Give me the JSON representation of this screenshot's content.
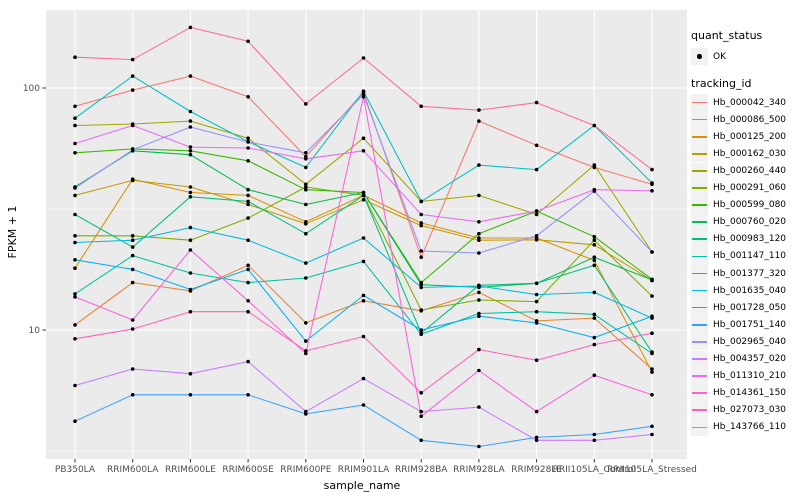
{
  "legend": {
    "quant_status_title": "quant_status",
    "quant_status_items": [
      {
        "label": "OK",
        "marker": "point-black"
      }
    ],
    "tracking_id_title": "tracking_id"
  },
  "chart_data": {
    "type": "line",
    "title": "",
    "xlabel": "sample_name",
    "ylabel": "FPKM + 1",
    "x_type": "categorical",
    "y_scale": "log10",
    "ylim": [
      2.9,
      211
    ],
    "y_ticks": [
      10,
      100
    ],
    "y_tick_labels": [
      "10",
      "100"
    ],
    "y_minor_ticks": [
      3.162,
      31.62
    ],
    "grid": true,
    "legend_position": "right",
    "panel_bg": "#EBEBEB",
    "grid_color": "#FFFFFF",
    "axis_text_color": "#4D4D4D",
    "tick_color": "#333333",
    "point_color": "#000000",
    "categories": [
      "PB350LA",
      "RRIM600LA",
      "RRIM600LE",
      "RRIM600SE",
      "RRIM600PE",
      "RRIM901LA",
      "RRIM928BA",
      "RRIM928LA",
      "RRIM928LE",
      "RRII105LA_Control",
      "RRII105LA_Stressed"
    ],
    "series": [
      {
        "name": "Hb_000042_340",
        "color": "#F8766D",
        "values": [
          84,
          98,
          112,
          92,
          52,
          96,
          20,
          73,
          58,
          47,
          40
        ]
      },
      {
        "name": "Hb_000086_500",
        "color": "#EA8331",
        "values": [
          10.5,
          15.7,
          14.5,
          18.5,
          10.7,
          13.2,
          12.0,
          14.3,
          10.9,
          11.2,
          6.9
        ]
      },
      {
        "name": "Hb_000125_200",
        "color": "#D89000",
        "values": [
          18,
          42,
          37,
          36,
          28,
          36,
          27.7,
          24,
          24,
          19.4,
          6.7
        ]
      },
      {
        "name": "Hb_000162_030",
        "color": "#C09B00",
        "values": [
          36,
          41.5,
          39,
          33,
          27.5,
          34.5,
          27,
          23.5,
          23.6,
          22.5,
          16
        ]
      },
      {
        "name": "Hb_000260_440",
        "color": "#A3A500",
        "values": [
          70,
          71,
          73,
          62,
          40,
          62,
          34,
          36,
          30,
          48,
          21
        ]
      },
      {
        "name": "Hb_000291_060",
        "color": "#7CAE00",
        "values": [
          24.5,
          24.5,
          23.5,
          29,
          39,
          36,
          12.1,
          13.3,
          13.1,
          23.5,
          13.8
        ]
      },
      {
        "name": "Hb_000599_080",
        "color": "#39B600",
        "values": [
          54,
          56,
          55,
          50,
          38,
          37,
          15.7,
          25,
          31,
          24.3,
          16.2
        ]
      },
      {
        "name": "Hb_000760_020",
        "color": "#00BB4E",
        "values": [
          39,
          55,
          53,
          38,
          33,
          37,
          15.4,
          15,
          15.6,
          20,
          16.1
        ]
      },
      {
        "name": "Hb_000983_120",
        "color": "#00BF7D",
        "values": [
          30,
          22,
          35.5,
          34,
          25,
          36,
          9.7,
          15.3,
          15.6,
          18.5,
          8.1
        ]
      },
      {
        "name": "Hb_001147_110",
        "color": "#00C1A3",
        "values": [
          14.1,
          20.3,
          17.2,
          15.7,
          16.4,
          19.2,
          9.6,
          11.7,
          11.9,
          11.6,
          8.0
        ]
      },
      {
        "name": "Hb_001377_320",
        "color": "#00BFC4",
        "values": [
          75,
          112,
          80,
          60,
          47,
          97,
          34,
          48,
          46,
          70,
          40.5
        ]
      },
      {
        "name": "Hb_001635_040",
        "color": "#00BAE0",
        "values": [
          23,
          23.5,
          26.5,
          23.5,
          18.9,
          24,
          15,
          15.2,
          14,
          14.3,
          11.2
        ]
      },
      {
        "name": "Hb_001728_050",
        "color": "#00B0F6",
        "values": [
          19.5,
          17.8,
          14.7,
          17.8,
          9.0,
          13.9,
          10,
          11.4,
          10.7,
          9.3,
          11.4
        ]
      },
      {
        "name": "Hb_001751_140",
        "color": "#35A2FF",
        "values": [
          4.2,
          5.4,
          5.4,
          5.4,
          4.5,
          4.9,
          3.5,
          3.3,
          3.6,
          3.7,
          4.0
        ]
      },
      {
        "name": "Hb_002965_040",
        "color": "#9590FF",
        "values": [
          38.6,
          55.5,
          69,
          59.8,
          54,
          94,
          21.2,
          20.8,
          24.5,
          37.5,
          21
        ]
      },
      {
        "name": "Hb_004357_020",
        "color": "#C77CFF",
        "values": [
          5.9,
          6.9,
          6.6,
          7.4,
          4.6,
          6.3,
          4.6,
          4.8,
          3.5,
          3.5,
          3.7
        ]
      },
      {
        "name": "Hb_011310_210",
        "color": "#E76BF3",
        "values": [
          59,
          70,
          57,
          56.5,
          51,
          55,
          30,
          28,
          31,
          38,
          37.6
        ]
      },
      {
        "name": "Hb_014361_150",
        "color": "#FA62DB",
        "values": [
          13.7,
          11,
          21.4,
          13.2,
          8.0,
          92,
          4.4,
          6.8,
          4.6,
          6.5,
          5.4
        ]
      },
      {
        "name": "Hb_027073_030",
        "color": "#FF62BC",
        "values": [
          9.2,
          10.1,
          11.9,
          11.9,
          8.2,
          9.4,
          5.5,
          8.3,
          7.5,
          8.7,
          9.7
        ]
      },
      {
        "name": "Hb_143766_110",
        "color": "#FF6A98",
        "values": [
          134,
          131,
          178,
          156,
          86,
          133,
          84,
          81,
          87,
          70,
          46
        ]
      }
    ]
  }
}
